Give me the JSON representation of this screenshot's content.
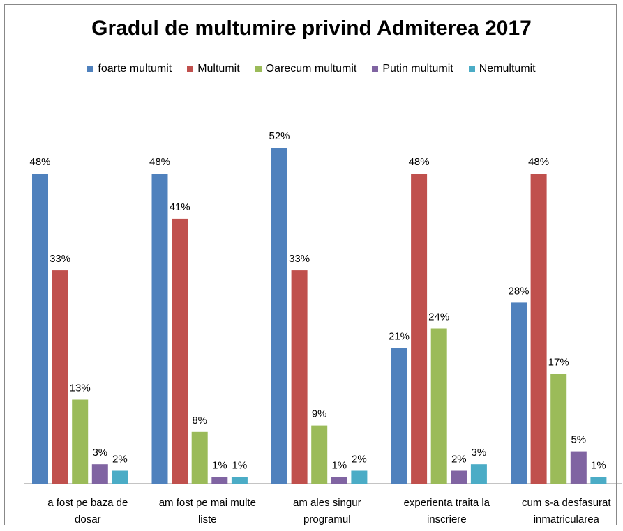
{
  "chart_data": {
    "type": "bar",
    "title": "Gradul de multumire privind Admiterea 2017",
    "xlabel": "",
    "ylabel": "",
    "ylim": [
      0,
      60
    ],
    "grid": false,
    "legend_position": "top",
    "categories": [
      [
        "a fost pe baza de",
        "dosar"
      ],
      [
        "am fost pe mai multe",
        "liste"
      ],
      [
        "am ales singur",
        "programul"
      ],
      [
        "experienta traita la",
        "inscriere"
      ],
      [
        "cum s-a desfasurat",
        "inmatricularea"
      ]
    ],
    "series": [
      {
        "name": "foarte multumit",
        "color": "#4F81BD",
        "values": [
          48,
          48,
          52,
          21,
          28
        ],
        "labels": [
          "48%",
          "48%",
          "52%",
          "21%",
          "28%"
        ]
      },
      {
        "name": "Multumit",
        "color": "#C0504D",
        "values": [
          33,
          41,
          33,
          48,
          48
        ],
        "labels": [
          "33%",
          "41%",
          "33%",
          "48%",
          "48%"
        ]
      },
      {
        "name": "Oarecum multumit",
        "color": "#9BBB59",
        "values": [
          13,
          8,
          9,
          24,
          17
        ],
        "labels": [
          "13%",
          "8%",
          "9%",
          "24%",
          "17%"
        ]
      },
      {
        "name": "Putin multumit",
        "color": "#8064A2",
        "values": [
          3,
          1,
          1,
          2,
          5
        ],
        "labels": [
          "3%",
          "1%",
          "1%",
          "2%",
          "5%"
        ]
      },
      {
        "name": "Nemultumit",
        "color": "#4BACC6",
        "values": [
          2,
          1,
          2,
          3,
          1
        ],
        "labels": [
          "2%",
          "1%",
          "2%",
          "3%",
          "1%"
        ]
      }
    ]
  }
}
